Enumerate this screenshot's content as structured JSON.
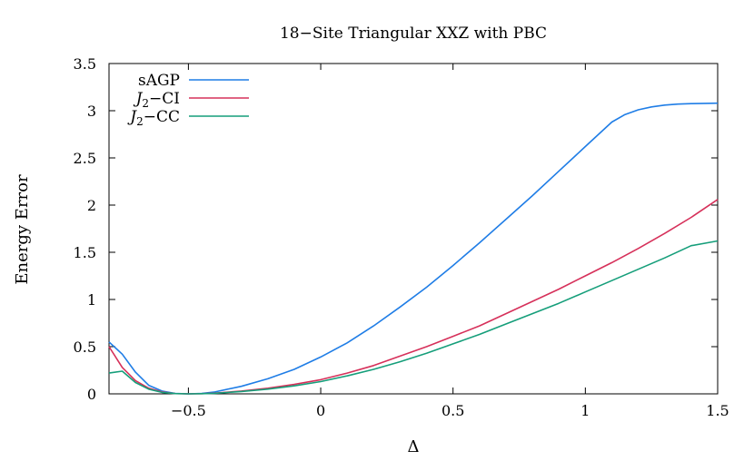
{
  "chart_data": {
    "type": "line",
    "title": "18−Site Triangular XXZ with PBC",
    "xlabel": "Δ",
    "ylabel": "Energy Error",
    "xlim": [
      -0.8,
      1.5
    ],
    "ylim": [
      0,
      3.5
    ],
    "xticks": [
      -0.5,
      0,
      0.5,
      1,
      1.5
    ],
    "xtick_labels": [
      "−0.5",
      "0",
      "0.5",
      "1",
      "1.5"
    ],
    "yticks": [
      0,
      0.5,
      1,
      1.5,
      2,
      2.5,
      3,
      3.5
    ],
    "ytick_labels": [
      "0",
      "0.5",
      "1",
      "1.5",
      "2",
      "2.5",
      "3",
      "3.5"
    ],
    "grid": false,
    "legend_position": "top-left",
    "series": [
      {
        "name": "sAGP",
        "label_main": "sAGP",
        "label_sub": "",
        "label_rest": "",
        "color": "#1f7de6",
        "x": [
          -0.8,
          -0.75,
          -0.7,
          -0.65,
          -0.6,
          -0.55,
          -0.5,
          -0.45,
          -0.4,
          -0.3,
          -0.2,
          -0.1,
          0.0,
          0.1,
          0.2,
          0.3,
          0.4,
          0.5,
          0.6,
          0.7,
          0.8,
          0.9,
          1.0,
          1.05,
          1.1,
          1.15,
          1.2,
          1.25,
          1.3,
          1.35,
          1.4,
          1.5
        ],
        "y": [
          0.55,
          0.42,
          0.23,
          0.09,
          0.03,
          0.005,
          0.0,
          0.005,
          0.02,
          0.08,
          0.16,
          0.26,
          0.39,
          0.54,
          0.72,
          0.92,
          1.13,
          1.36,
          1.6,
          1.85,
          2.1,
          2.36,
          2.62,
          2.75,
          2.88,
          2.96,
          3.01,
          3.04,
          3.06,
          3.07,
          3.075,
          3.08
        ]
      },
      {
        "name": "J2−CI",
        "label_main": "J",
        "label_sub": "2",
        "label_rest": "−CI",
        "color": "#d6305a",
        "x": [
          -0.8,
          -0.75,
          -0.7,
          -0.65,
          -0.6,
          -0.55,
          -0.5,
          -0.45,
          -0.4,
          -0.3,
          -0.2,
          -0.1,
          0.0,
          0.1,
          0.2,
          0.3,
          0.4,
          0.5,
          0.6,
          0.7,
          0.8,
          0.9,
          1.0,
          1.1,
          1.2,
          1.3,
          1.4,
          1.5
        ],
        "y": [
          0.5,
          0.28,
          0.14,
          0.06,
          0.02,
          0.003,
          0.0,
          0.002,
          0.008,
          0.03,
          0.06,
          0.1,
          0.15,
          0.22,
          0.3,
          0.4,
          0.5,
          0.61,
          0.72,
          0.85,
          0.98,
          1.11,
          1.25,
          1.39,
          1.54,
          1.7,
          1.87,
          2.06
        ]
      },
      {
        "name": "J2−CC",
        "label_main": "J",
        "label_sub": "2",
        "label_rest": "−CC",
        "color": "#159e7a",
        "x": [
          -0.8,
          -0.75,
          -0.7,
          -0.65,
          -0.6,
          -0.55,
          -0.5,
          -0.45,
          -0.4,
          -0.3,
          -0.2,
          -0.1,
          0.0,
          0.1,
          0.2,
          0.3,
          0.4,
          0.5,
          0.6,
          0.7,
          0.8,
          0.9,
          1.0,
          1.1,
          1.2,
          1.3,
          1.4,
          1.5
        ],
        "y": [
          0.22,
          0.24,
          0.12,
          0.05,
          0.015,
          0.003,
          0.0,
          0.002,
          0.006,
          0.025,
          0.05,
          0.085,
          0.13,
          0.19,
          0.26,
          0.34,
          0.43,
          0.53,
          0.63,
          0.74,
          0.85,
          0.96,
          1.08,
          1.2,
          1.32,
          1.44,
          1.57,
          1.62
        ]
      }
    ]
  }
}
